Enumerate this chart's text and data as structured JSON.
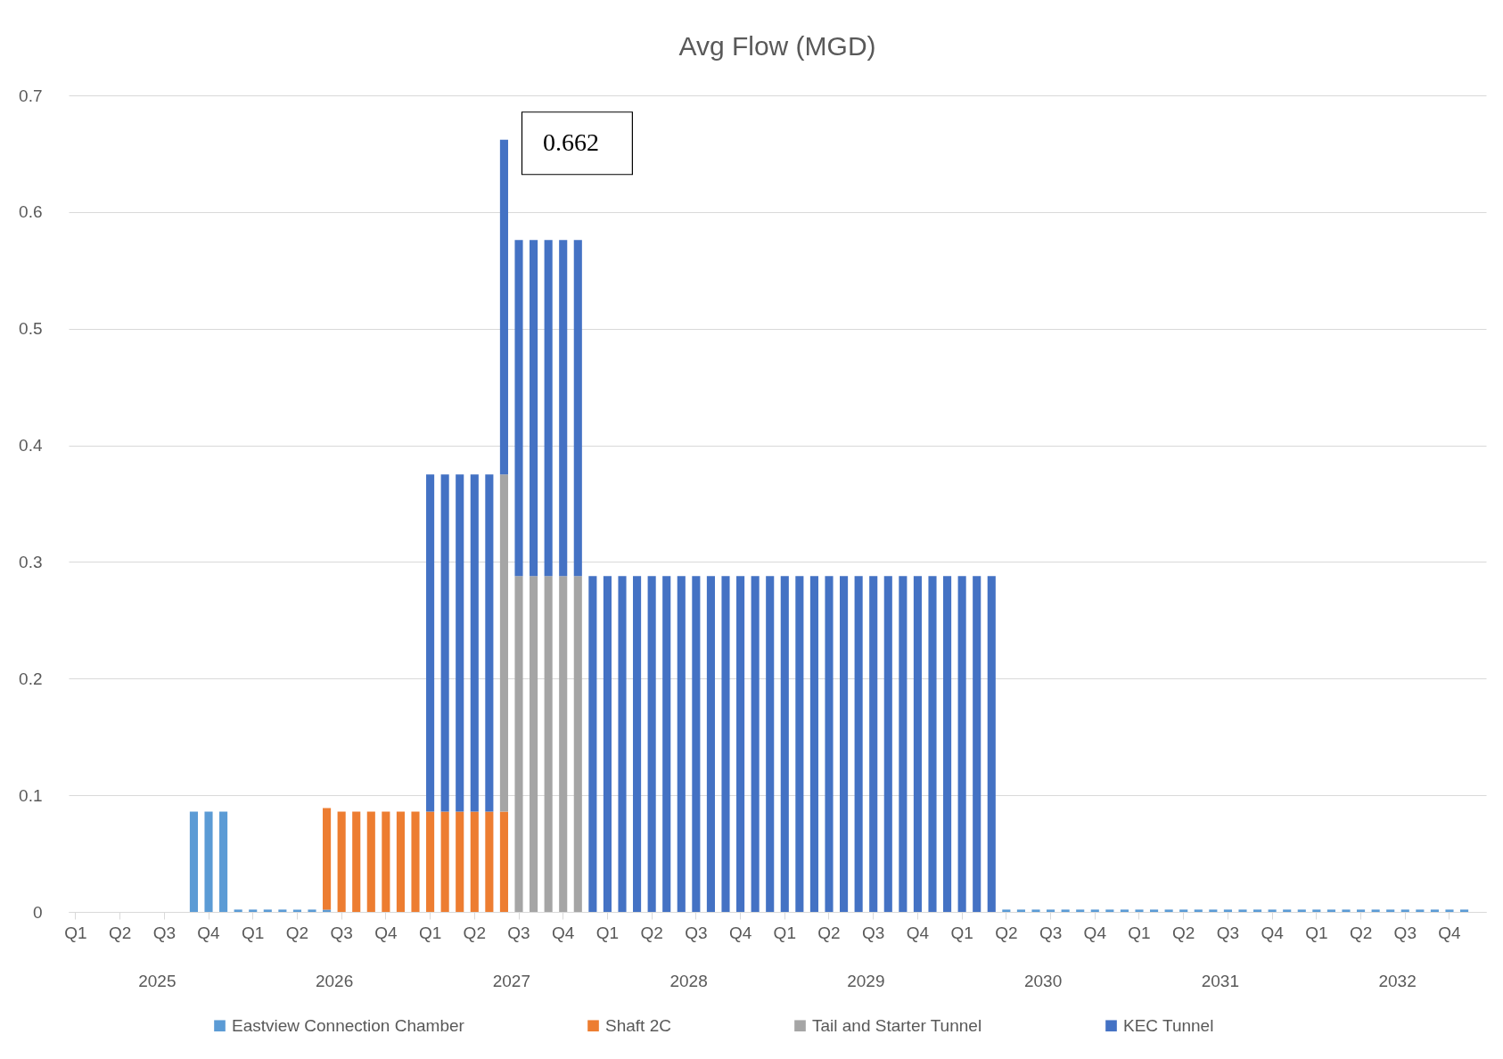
{
  "chart_data": {
    "type": "bar",
    "title": "Avg Flow (MGD)",
    "stacked": true,
    "categories": [
      "Q1",
      null,
      null,
      "Q2",
      null,
      null,
      "Q3",
      null,
      null,
      "Q4",
      null,
      null,
      "Q1",
      null,
      null,
      "Q2",
      null,
      null,
      "Q3",
      null,
      null,
      "Q4",
      null,
      null,
      "Q1",
      null,
      null,
      "Q2",
      null,
      null,
      "Q3",
      null,
      null,
      "Q4",
      null,
      null,
      "Q1",
      null,
      null,
      "Q2",
      null,
      null,
      "Q3",
      null,
      null,
      "Q4",
      null,
      null,
      "Q1",
      null,
      null,
      "Q2",
      null,
      null,
      "Q3",
      null,
      null,
      "Q4",
      null,
      null,
      "Q1",
      null,
      null,
      "Q2",
      null,
      null,
      "Q3",
      null,
      null,
      "Q4",
      null,
      null,
      "Q1",
      null,
      null,
      "Q2",
      null,
      null,
      "Q3",
      null,
      null,
      "Q4",
      null,
      null,
      "Q1",
      null,
      null,
      "Q2",
      null,
      null,
      "Q3",
      null,
      null,
      "Q4",
      null,
      null
    ],
    "series": [
      {
        "name": "Eastview Connection Chamber",
        "color": "#5b9bd5",
        "values": [
          null,
          null,
          null,
          null,
          null,
          null,
          null,
          null,
          0.086,
          0.086,
          0.086,
          0.002,
          0.002,
          0.002,
          0.002,
          0.002,
          0.002,
          0.002,
          null,
          null,
          null,
          null,
          null,
          null,
          null,
          null,
          null,
          null,
          null,
          null,
          null,
          null,
          null,
          null,
          null,
          null,
          null,
          null,
          null,
          null,
          null,
          null,
          null,
          null,
          null,
          null,
          null,
          null,
          null,
          null,
          null,
          null,
          null,
          null,
          null,
          null,
          null,
          null,
          null,
          null,
          null,
          null,
          null,
          0.002,
          0.002,
          0.002,
          0.002,
          0.002,
          0.002,
          0.002,
          0.002,
          0.002,
          0.002,
          0.002,
          0.002,
          0.002,
          0.002,
          0.002,
          0.002,
          0.002,
          0.002,
          0.002,
          0.002,
          0.002,
          0.002,
          0.002,
          0.002,
          0.002,
          0.002,
          0.002,
          0.002,
          0.002,
          0.002,
          0.002,
          0.002,
          null
        ]
      },
      {
        "name": "Shaft 2C",
        "color": "#ed7d31",
        "values": [
          null,
          null,
          null,
          null,
          null,
          null,
          null,
          null,
          null,
          null,
          null,
          null,
          null,
          null,
          null,
          null,
          null,
          0.087,
          0.086,
          0.086,
          0.086,
          0.086,
          0.086,
          0.086,
          0.086,
          0.086,
          0.086,
          0.086,
          0.086,
          0.086,
          null,
          null,
          null,
          null,
          null,
          null,
          null,
          null,
          null,
          null,
          null,
          null,
          null,
          null,
          null,
          null,
          null,
          null,
          null,
          null,
          null,
          null,
          null,
          null,
          null,
          null,
          null,
          null,
          null,
          null,
          null,
          null,
          null,
          null,
          null,
          null,
          null,
          null,
          null,
          null,
          null,
          null,
          null,
          null,
          null,
          null,
          null,
          null,
          null,
          null,
          null,
          null,
          null,
          null,
          null,
          null,
          null,
          null,
          null,
          null,
          null,
          null,
          null,
          null,
          null,
          null
        ]
      },
      {
        "name": "Tail and Starter Tunnel",
        "color": "#a5a5a5",
        "values": [
          null,
          null,
          null,
          null,
          null,
          null,
          null,
          null,
          null,
          null,
          null,
          null,
          null,
          null,
          null,
          null,
          null,
          null,
          null,
          null,
          null,
          null,
          null,
          null,
          null,
          null,
          null,
          null,
          null,
          0.289,
          0.288,
          0.288,
          0.288,
          0.288,
          0.288,
          null,
          null,
          null,
          null,
          null,
          null,
          null,
          null,
          null,
          null,
          null,
          null,
          null,
          null,
          null,
          null,
          null,
          null,
          null,
          null,
          null,
          null,
          null,
          null,
          null,
          null,
          null,
          null,
          null,
          null,
          null,
          null,
          null,
          null,
          null,
          null,
          null,
          null,
          null,
          null,
          null,
          null,
          null,
          null,
          null,
          null,
          null,
          null,
          null,
          null,
          null,
          null,
          null,
          null,
          null,
          null,
          null,
          null,
          null,
          null,
          null
        ]
      },
      {
        "name": "KEC Tunnel",
        "color": "#4472c4",
        "values": [
          null,
          null,
          null,
          null,
          null,
          null,
          null,
          null,
          null,
          null,
          null,
          null,
          null,
          null,
          null,
          null,
          null,
          null,
          null,
          null,
          null,
          null,
          null,
          null,
          0.289,
          0.289,
          0.289,
          0.289,
          0.289,
          0.287,
          0.288,
          0.288,
          0.288,
          0.288,
          0.288,
          0.288,
          0.288,
          0.288,
          0.288,
          0.288,
          0.288,
          0.288,
          0.288,
          0.288,
          0.288,
          0.288,
          0.288,
          0.288,
          0.288,
          0.288,
          0.288,
          0.288,
          0.288,
          0.288,
          0.288,
          0.288,
          0.288,
          0.288,
          0.288,
          0.288,
          0.288,
          0.288,
          0.288,
          null,
          null,
          null,
          null,
          null,
          null,
          null,
          null,
          null,
          null,
          null,
          null,
          null,
          null,
          null,
          null,
          null,
          null,
          null,
          null,
          null,
          null,
          null,
          null,
          null,
          null,
          null,
          null,
          null,
          null,
          null,
          null,
          null
        ]
      }
    ],
    "totals": [
      null,
      null,
      null,
      null,
      null,
      null,
      null,
      null,
      null,
      null,
      null,
      null,
      null,
      null,
      null,
      null,
      null,
      null,
      null,
      null,
      null,
      null,
      null,
      null,
      null,
      null,
      null,
      null,
      null,
      "0.662",
      null,
      null,
      null,
      null,
      null,
      null,
      null,
      null,
      null,
      null,
      null,
      null,
      null,
      null,
      null,
      null,
      null,
      null,
      null,
      null,
      null,
      null,
      null,
      null,
      null,
      null,
      null,
      null,
      null,
      null,
      null,
      null,
      null,
      null,
      null,
      null,
      null,
      null,
      null,
      null,
      null,
      null,
      null,
      null,
      null,
      null,
      null,
      null,
      null,
      null,
      null,
      null,
      null,
      null,
      null,
      null,
      null,
      null,
      null,
      null,
      null,
      null,
      null,
      null,
      null,
      null
    ],
    "ylim": [
      0,
      0.7
    ],
    "yticks": [
      0,
      0.1,
      0.2,
      0.3,
      0.4,
      0.5,
      0.6,
      0.7
    ],
    "grid": "y",
    "legend": "bottom",
    "annotations": [
      "2025",
      "2026",
      "2027",
      "2028",
      "2029",
      "2030",
      "2031",
      "2032"
    ]
  }
}
